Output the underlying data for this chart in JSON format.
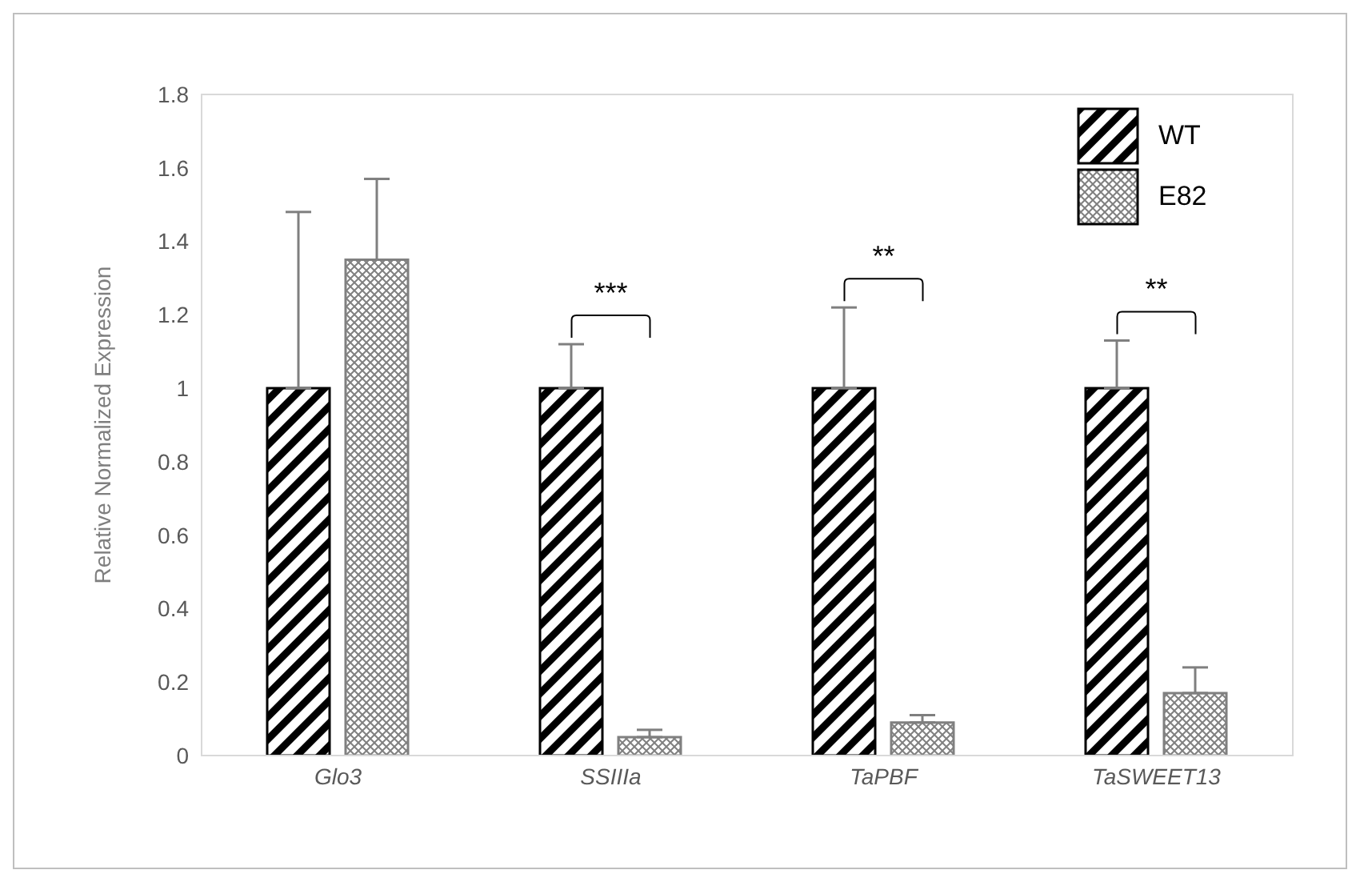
{
  "chart_data": {
    "type": "bar",
    "ylabel": "Relative Normalized Expression",
    "categories": [
      "Glo3",
      "SSIIIa",
      "TaPBF",
      "TaSWEET13"
    ],
    "series": [
      {
        "name": "WT",
        "color": "#000000",
        "values": [
          1,
          1,
          1,
          1
        ],
        "errors": [
          [
            1,
            1.48
          ],
          [
            1,
            1.12
          ],
          [
            1,
            1.22
          ],
          [
            1,
            1.13
          ]
        ]
      },
      {
        "name": "E82",
        "color": "#808080",
        "values": [
          1.35,
          0.05,
          0.09,
          0.17
        ],
        "errors": [
          [
            1.35,
            1.57
          ],
          [
            0.05,
            0.07
          ],
          [
            0.09,
            0.11
          ],
          [
            0.17,
            0.24
          ]
        ]
      }
    ],
    "ylim": [
      0,
      1.8
    ],
    "yticks": [
      0,
      0.2,
      0.4,
      0.6,
      0.8,
      1,
      1.2,
      1.4,
      1.6,
      1.8
    ],
    "grid": false,
    "legend": "top right",
    "annotations": [
      "***",
      "**",
      "**"
    ]
  }
}
